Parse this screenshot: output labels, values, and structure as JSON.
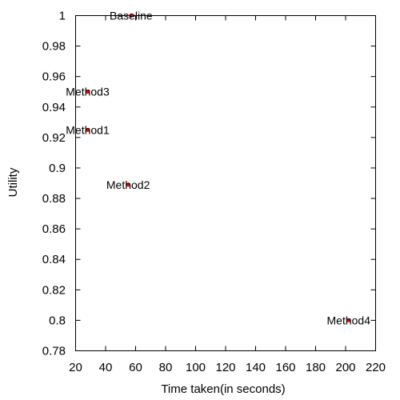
{
  "chart_data": {
    "type": "scatter",
    "title": "",
    "xlabel": "Time taken(in seconds)",
    "ylabel": "Utility",
    "xlim": [
      20,
      220
    ],
    "ylim": [
      0.78,
      1.0
    ],
    "xticks": [
      20,
      40,
      60,
      80,
      100,
      120,
      140,
      160,
      180,
      200,
      220
    ],
    "xtick_labels": [
      "20",
      "40",
      "60",
      "80",
      "100",
      "120",
      "140",
      "160",
      "180",
      "200",
      "220"
    ],
    "yticks": [
      0.78,
      0.8,
      0.82,
      0.84,
      0.86,
      0.88,
      0.9,
      0.92,
      0.94,
      0.96,
      0.98,
      1.0
    ],
    "ytick_labels": [
      "0.78",
      "0.8",
      "0.82",
      "0.84",
      "0.86",
      "0.88",
      "0.9",
      "0.92",
      "0.94",
      "0.96",
      "0.98",
      "1"
    ],
    "grid": false,
    "legend": "none",
    "marker_color": "#ff0000",
    "points": [
      {
        "label": "Baseline",
        "x": 57,
        "y": 1.0
      },
      {
        "label": "Method3",
        "x": 28,
        "y": 0.95
      },
      {
        "label": "Method1",
        "x": 28,
        "y": 0.925
      },
      {
        "label": "Method2",
        "x": 55,
        "y": 0.889
      },
      {
        "label": "Method4",
        "x": 202,
        "y": 0.8
      }
    ]
  }
}
